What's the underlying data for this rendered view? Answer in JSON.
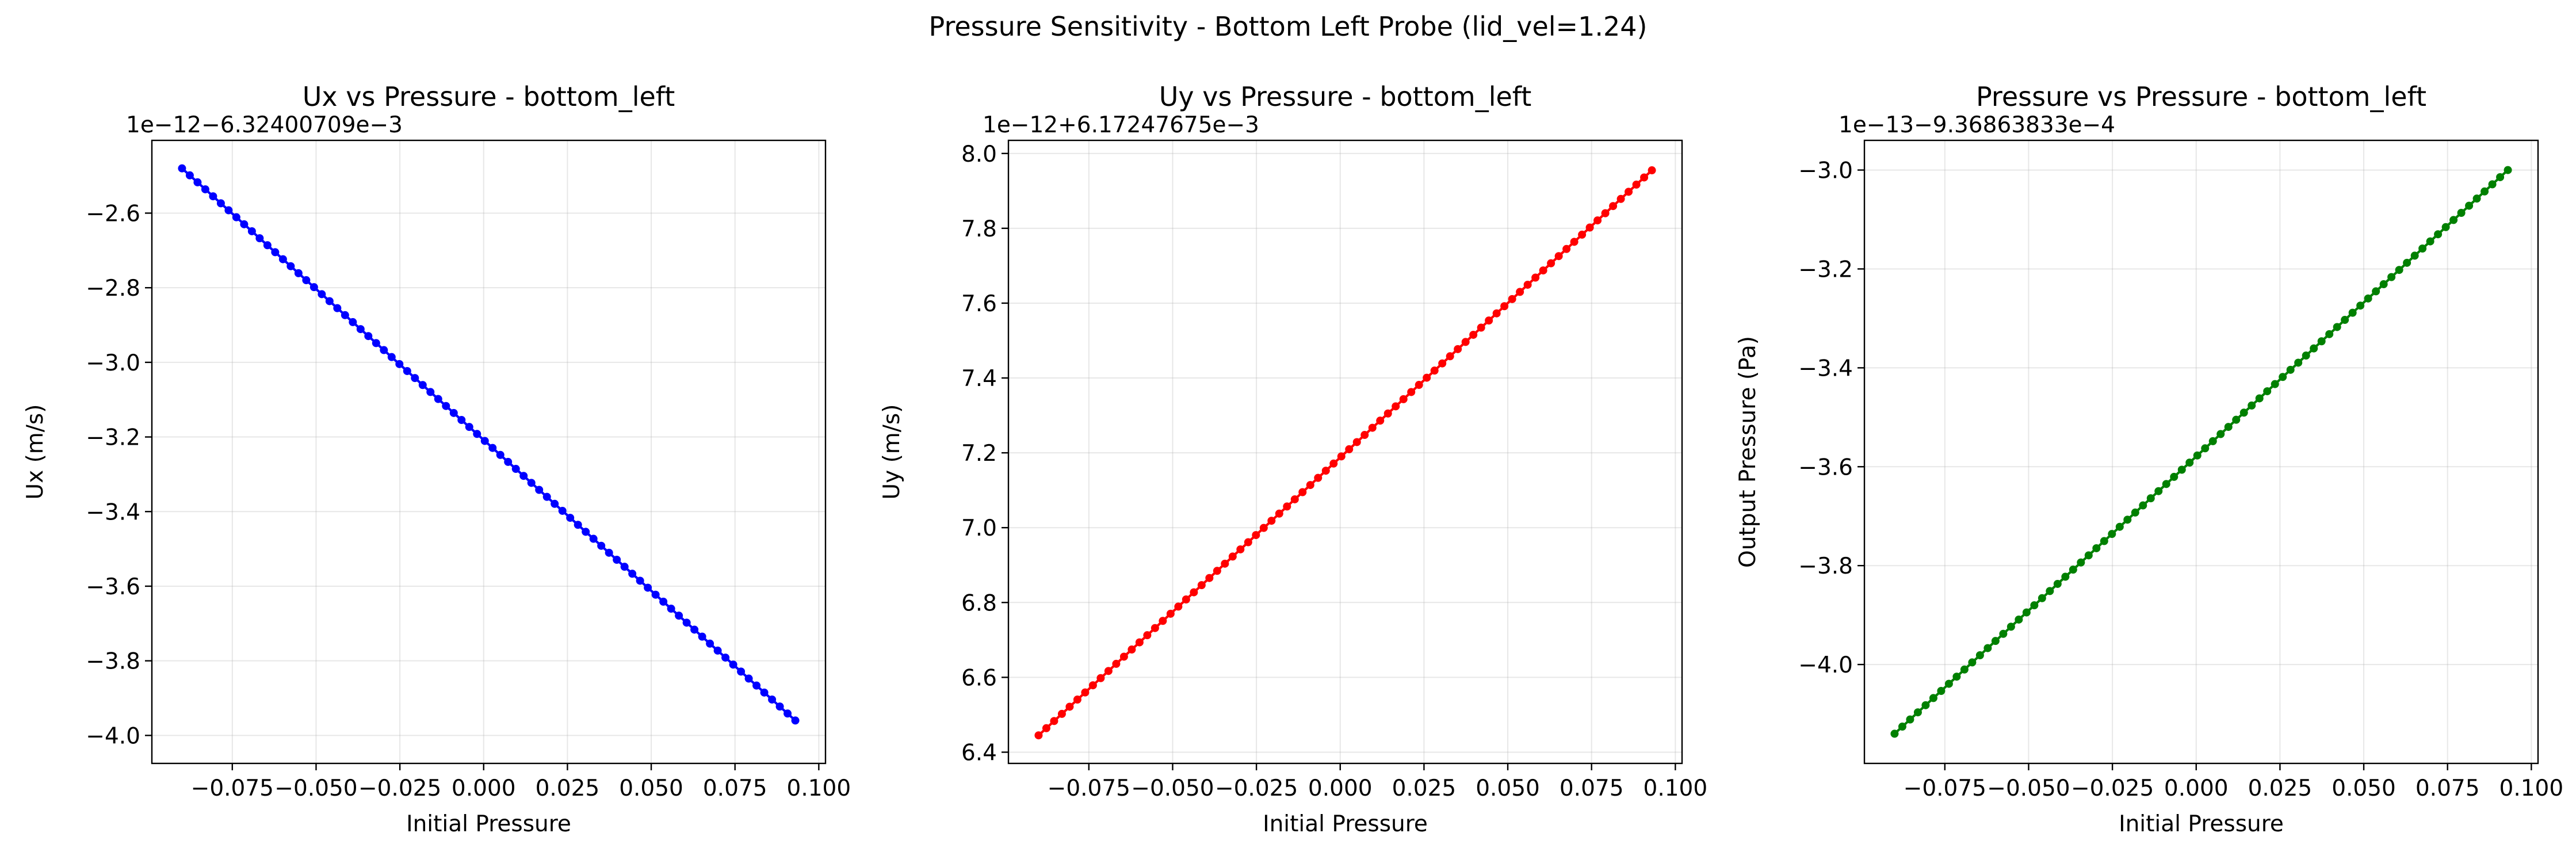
{
  "figure": {
    "suptitle": "Pressure Sensitivity - Bottom Left Probe (lid_vel=1.24)"
  },
  "chart_data": [
    {
      "type": "line",
      "title": "Ux vs Pressure - bottom_left",
      "xlabel": "Initial Pressure",
      "ylabel": "Ux (m/s)",
      "offset_text": "1e−12−6.32400709e−3",
      "color": "#0000ff",
      "grid": true,
      "xlim": [
        -0.099,
        0.102
      ],
      "ylim": [
        -4.075,
        -2.405
      ],
      "x_ticks": [
        -0.075,
        -0.05,
        -0.025,
        0.0,
        0.025,
        0.05,
        0.075,
        0.1
      ],
      "x_tick_labels": [
        "−0.075",
        "−0.050",
        "−0.025",
        "0.000",
        "0.025",
        "0.050",
        "0.075",
        "0.100"
      ],
      "y_ticks": [
        -4.0,
        -3.8,
        -3.6,
        -3.4,
        -3.2,
        -3.0,
        -2.8,
        -2.6
      ],
      "y_tick_labels": [
        "−4.0",
        "−3.8",
        "−3.6",
        "−3.4",
        "−3.2",
        "−3.0",
        "−2.8",
        "−2.6"
      ],
      "x_range": [
        -0.09,
        0.093
      ],
      "y_range": [
        -2.48,
        -3.96
      ],
      "n_points": 80
    },
    {
      "type": "line",
      "title": "Uy vs Pressure - bottom_left",
      "xlabel": "Initial Pressure",
      "ylabel": "Uy (m/s)",
      "offset_text": "1e−12+6.17247675e−3",
      "color": "#ff0000",
      "grid": true,
      "xlim": [
        -0.099,
        0.102
      ],
      "ylim": [
        6.37,
        8.035
      ],
      "x_ticks": [
        -0.075,
        -0.05,
        -0.025,
        0.0,
        0.025,
        0.05,
        0.075,
        0.1
      ],
      "x_tick_labels": [
        "−0.075",
        "−0.050",
        "−0.025",
        "0.000",
        "0.025",
        "0.050",
        "0.075",
        "0.100"
      ],
      "y_ticks": [
        6.4,
        6.6,
        6.8,
        7.0,
        7.2,
        7.4,
        7.6,
        7.8,
        8.0
      ],
      "y_tick_labels": [
        "6.4",
        "6.6",
        "6.8",
        "7.0",
        "7.2",
        "7.4",
        "7.6",
        "7.8",
        "8.0"
      ],
      "x_range": [
        -0.09,
        0.093
      ],
      "y_range": [
        6.445,
        7.955
      ],
      "n_points": 80
    },
    {
      "type": "line",
      "title": "Pressure vs Pressure - bottom_left",
      "xlabel": "Initial Pressure",
      "ylabel": "Output Pressure (Pa)",
      "offset_text": "1e−13−9.36863833e−4",
      "color": "#008000",
      "grid": true,
      "xlim": [
        -0.099,
        0.102
      ],
      "ylim": [
        -4.2,
        -2.94
      ],
      "x_ticks": [
        -0.075,
        -0.05,
        -0.025,
        0.0,
        0.025,
        0.05,
        0.075,
        0.1
      ],
      "x_tick_labels": [
        "−0.075",
        "−0.050",
        "−0.025",
        "0.000",
        "0.025",
        "0.050",
        "0.075",
        "0.100"
      ],
      "y_ticks": [
        -4.0,
        -3.8,
        -3.6,
        -3.4,
        -3.2,
        -3.0
      ],
      "y_tick_labels": [
        "−4.0",
        "−3.8",
        "−3.6",
        "−3.4",
        "−3.2",
        "−3.0"
      ],
      "x_range": [
        -0.09,
        0.093
      ],
      "y_range": [
        -4.14,
        -3.0
      ],
      "n_points": 80
    }
  ]
}
